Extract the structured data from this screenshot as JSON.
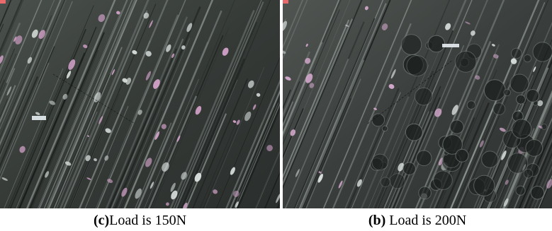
{
  "figures": [
    {
      "id": "c",
      "caption_letter": "c",
      "caption_open": "(",
      "caption_close": ")",
      "caption_text": "Load is 150N",
      "colors": {
        "base": "#3a3f3c",
        "highlight": "#d9a6cf",
        "scratch_dark": "#151917"
      }
    },
    {
      "id": "b",
      "caption_letter": "b",
      "caption_open": "(",
      "caption_close": ")",
      "caption_text": " Load is 200N",
      "colors": {
        "base": "#3d4240",
        "highlight": "#dcaed4",
        "scratch_dark": "#131615"
      }
    }
  ]
}
